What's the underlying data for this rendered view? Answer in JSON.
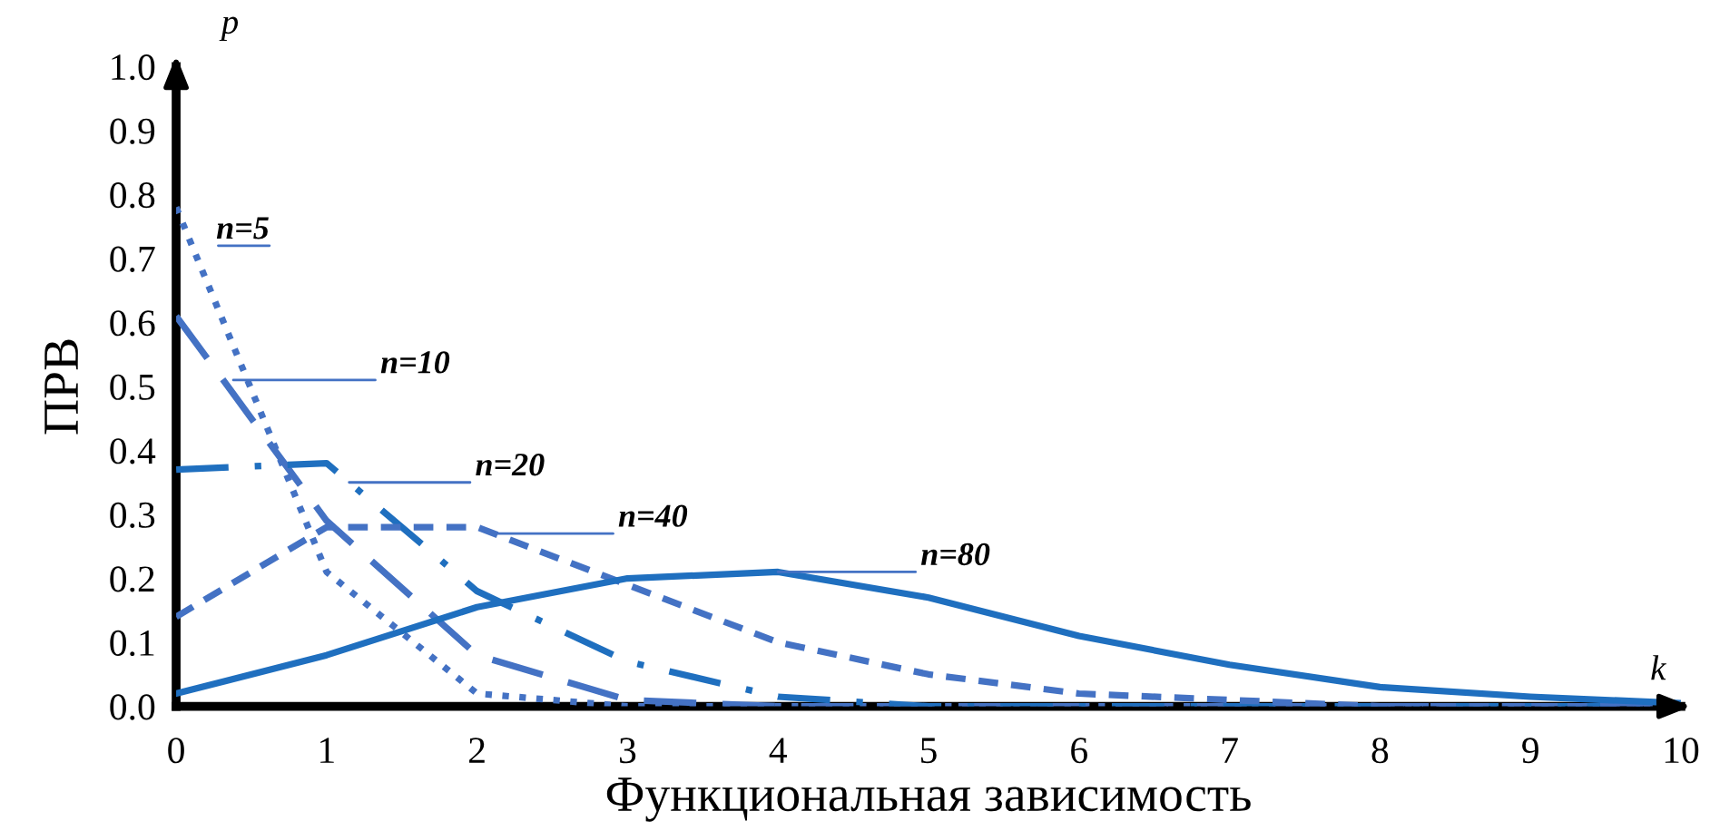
{
  "chart_data": {
    "type": "line",
    "xlabel": "Функциональная зависимость",
    "ylabel": "ПРВ",
    "x": [
      0,
      1,
      2,
      3,
      4,
      5,
      6,
      7,
      8,
      9,
      10
    ],
    "xlim": [
      0,
      10
    ],
    "xticks": [
      0,
      1,
      2,
      3,
      4,
      5,
      6,
      7,
      8,
      9,
      10
    ],
    "ylim": [
      0,
      1.0
    ],
    "yticks": [
      {
        "value": 0,
        "label": "0.0"
      },
      {
        "value": 0.1,
        "label": "0.1"
      },
      {
        "value": 0.2,
        "label": "0.2"
      },
      {
        "value": 0.3,
        "label": "0.3"
      },
      {
        "value": 0.4,
        "label": "0.4"
      },
      {
        "value": 0.5,
        "label": "0.5"
      },
      {
        "value": 0.6,
        "label": "0.6"
      },
      {
        "value": 0.7,
        "label": "0.7"
      },
      {
        "value": 0.8,
        "label": "0.8"
      },
      {
        "value": 0.9,
        "label": "0.9"
      },
      {
        "value": 1.0,
        "label": "1.0"
      }
    ],
    "grid": false,
    "legend": false,
    "marker": "none",
    "series": [
      {
        "color": "#4472c4",
        "line_style": "dotted",
        "values": [
          0.78,
          0.21,
          0.02,
          0.0,
          0.0,
          0.0,
          0.0,
          0.0,
          0.0,
          0.0,
          0.0
        ]
      },
      {
        "color": "#4472c4",
        "line_style": "longdash",
        "values": [
          0.61,
          0.29,
          0.08,
          0.01,
          0.0,
          0.0,
          0.0,
          0.0,
          0.0,
          0.0,
          0.0
        ]
      },
      {
        "color": "#1f6fbf",
        "line_style": "dashdot",
        "values": [
          0.37,
          0.38,
          0.18,
          0.07,
          0.015,
          0.0,
          0.0,
          0.0,
          0.0,
          0.0,
          0.0
        ]
      },
      {
        "color": "#4472c4",
        "line_style": "dashed",
        "values": [
          0.14,
          0.28,
          0.28,
          0.19,
          0.1,
          0.05,
          0.02,
          0.01,
          0.0,
          0.0,
          0.0
        ]
      },
      {
        "color": "#1f6fbf",
        "line_style": "solid",
        "values": [
          0.02,
          0.08,
          0.155,
          0.2,
          0.21,
          0.17,
          0.11,
          0.065,
          0.03,
          0.015,
          0.005
        ]
      }
    ],
    "annotations": [
      "p",
      "k",
      "n=5",
      "n=10",
      "n=20",
      "n=40",
      "n=80"
    ]
  }
}
